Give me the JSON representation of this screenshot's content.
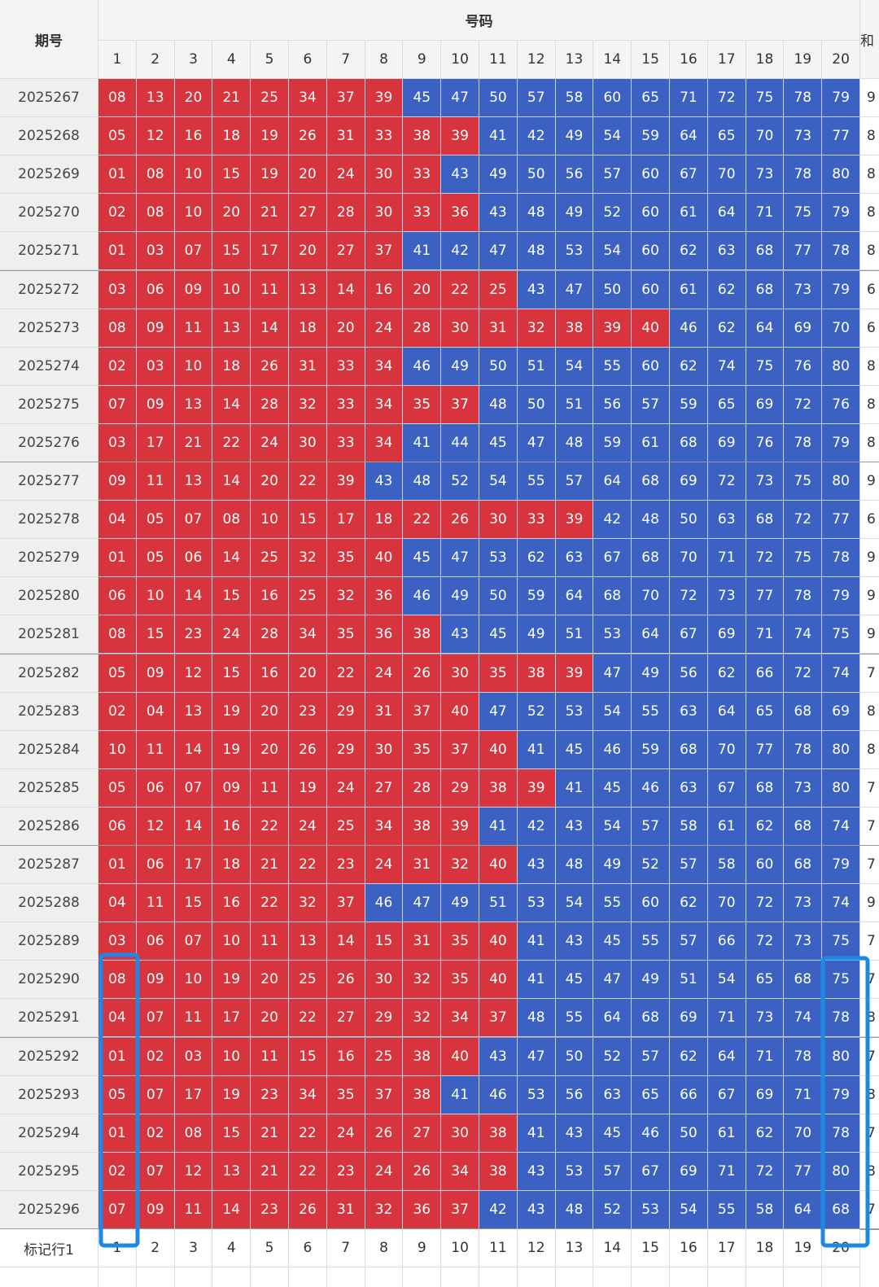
{
  "header": {
    "period": "期号",
    "numbers": "号码",
    "sum": "和"
  },
  "column_numbers": [
    1,
    2,
    3,
    4,
    5,
    6,
    7,
    8,
    9,
    10,
    11,
    12,
    13,
    14,
    15,
    16,
    17,
    18,
    19,
    20
  ],
  "rows": [
    {
      "period": "2025267",
      "numbers": [
        "08",
        "13",
        "20",
        "21",
        "25",
        "34",
        "37",
        "39",
        "45",
        "47",
        "50",
        "57",
        "58",
        "60",
        "65",
        "71",
        "72",
        "75",
        "78",
        "79"
      ],
      "sum": "9"
    },
    {
      "period": "2025268",
      "numbers": [
        "05",
        "12",
        "16",
        "18",
        "19",
        "26",
        "31",
        "33",
        "38",
        "39",
        "41",
        "42",
        "49",
        "54",
        "59",
        "64",
        "65",
        "70",
        "73",
        "77"
      ],
      "sum": "8"
    },
    {
      "period": "2025269",
      "numbers": [
        "01",
        "08",
        "10",
        "15",
        "19",
        "20",
        "24",
        "30",
        "33",
        "43",
        "49",
        "50",
        "56",
        "57",
        "60",
        "67",
        "70",
        "73",
        "78",
        "80"
      ],
      "sum": "8"
    },
    {
      "period": "2025270",
      "numbers": [
        "02",
        "08",
        "10",
        "20",
        "21",
        "27",
        "28",
        "30",
        "33",
        "36",
        "43",
        "48",
        "49",
        "52",
        "60",
        "61",
        "64",
        "71",
        "75",
        "79"
      ],
      "sum": "8"
    },
    {
      "period": "2025271",
      "numbers": [
        "01",
        "03",
        "07",
        "15",
        "17",
        "20",
        "27",
        "37",
        "41",
        "42",
        "47",
        "48",
        "53",
        "54",
        "60",
        "62",
        "63",
        "68",
        "77",
        "78"
      ],
      "sum": "8"
    },
    {
      "period": "2025272",
      "numbers": [
        "03",
        "06",
        "09",
        "10",
        "11",
        "13",
        "14",
        "16",
        "20",
        "22",
        "25",
        "43",
        "47",
        "50",
        "60",
        "61",
        "62",
        "68",
        "73",
        "79"
      ],
      "sum": "6"
    },
    {
      "period": "2025273",
      "numbers": [
        "08",
        "09",
        "11",
        "13",
        "14",
        "18",
        "20",
        "24",
        "28",
        "30",
        "31",
        "32",
        "38",
        "39",
        "40",
        "46",
        "62",
        "64",
        "69",
        "70"
      ],
      "sum": "6"
    },
    {
      "period": "2025274",
      "numbers": [
        "02",
        "03",
        "10",
        "18",
        "26",
        "31",
        "33",
        "34",
        "46",
        "49",
        "50",
        "51",
        "54",
        "55",
        "60",
        "62",
        "74",
        "75",
        "76",
        "80"
      ],
      "sum": "8"
    },
    {
      "period": "2025275",
      "numbers": [
        "07",
        "09",
        "13",
        "14",
        "28",
        "32",
        "33",
        "34",
        "35",
        "37",
        "48",
        "50",
        "51",
        "56",
        "57",
        "59",
        "65",
        "69",
        "72",
        "76"
      ],
      "sum": "8"
    },
    {
      "period": "2025276",
      "numbers": [
        "03",
        "17",
        "21",
        "22",
        "24",
        "30",
        "33",
        "34",
        "41",
        "44",
        "45",
        "47",
        "48",
        "59",
        "61",
        "68",
        "69",
        "76",
        "78",
        "79"
      ],
      "sum": "8"
    },
    {
      "period": "2025277",
      "numbers": [
        "09",
        "11",
        "13",
        "14",
        "20",
        "22",
        "39",
        "43",
        "48",
        "52",
        "54",
        "55",
        "57",
        "64",
        "68",
        "69",
        "72",
        "73",
        "75",
        "80"
      ],
      "sum": "9"
    },
    {
      "period": "2025278",
      "numbers": [
        "04",
        "05",
        "07",
        "08",
        "10",
        "15",
        "17",
        "18",
        "22",
        "26",
        "30",
        "33",
        "39",
        "42",
        "48",
        "50",
        "63",
        "68",
        "72",
        "77"
      ],
      "sum": "6"
    },
    {
      "period": "2025279",
      "numbers": [
        "01",
        "05",
        "06",
        "14",
        "25",
        "32",
        "35",
        "40",
        "45",
        "47",
        "53",
        "62",
        "63",
        "67",
        "68",
        "70",
        "71",
        "72",
        "75",
        "78"
      ],
      "sum": "9"
    },
    {
      "period": "2025280",
      "numbers": [
        "06",
        "10",
        "14",
        "15",
        "16",
        "25",
        "32",
        "36",
        "46",
        "49",
        "50",
        "59",
        "64",
        "68",
        "70",
        "72",
        "73",
        "77",
        "78",
        "79"
      ],
      "sum": "9"
    },
    {
      "period": "2025281",
      "numbers": [
        "08",
        "15",
        "23",
        "24",
        "28",
        "34",
        "35",
        "36",
        "38",
        "43",
        "45",
        "49",
        "51",
        "53",
        "64",
        "67",
        "69",
        "71",
        "74",
        "75"
      ],
      "sum": "9"
    },
    {
      "period": "2025282",
      "numbers": [
        "05",
        "09",
        "12",
        "15",
        "16",
        "20",
        "22",
        "24",
        "26",
        "30",
        "35",
        "38",
        "39",
        "47",
        "49",
        "56",
        "62",
        "66",
        "72",
        "74"
      ],
      "sum": "7"
    },
    {
      "period": "2025283",
      "numbers": [
        "02",
        "04",
        "13",
        "19",
        "20",
        "23",
        "29",
        "31",
        "37",
        "40",
        "47",
        "52",
        "53",
        "54",
        "55",
        "63",
        "64",
        "65",
        "68",
        "69"
      ],
      "sum": "8"
    },
    {
      "period": "2025284",
      "numbers": [
        "10",
        "11",
        "14",
        "19",
        "20",
        "26",
        "29",
        "30",
        "35",
        "37",
        "40",
        "41",
        "45",
        "46",
        "59",
        "68",
        "70",
        "77",
        "78",
        "80"
      ],
      "sum": "8"
    },
    {
      "period": "2025285",
      "numbers": [
        "05",
        "06",
        "07",
        "09",
        "11",
        "19",
        "24",
        "27",
        "28",
        "29",
        "38",
        "39",
        "41",
        "45",
        "46",
        "63",
        "67",
        "68",
        "73",
        "80"
      ],
      "sum": "7"
    },
    {
      "period": "2025286",
      "numbers": [
        "06",
        "12",
        "14",
        "16",
        "22",
        "24",
        "25",
        "34",
        "38",
        "39",
        "41",
        "42",
        "43",
        "54",
        "57",
        "58",
        "61",
        "62",
        "68",
        "74"
      ],
      "sum": "7"
    },
    {
      "period": "2025287",
      "numbers": [
        "01",
        "06",
        "17",
        "18",
        "21",
        "22",
        "23",
        "24",
        "31",
        "32",
        "40",
        "43",
        "48",
        "49",
        "52",
        "57",
        "58",
        "60",
        "68",
        "79"
      ],
      "sum": "7"
    },
    {
      "period": "2025288",
      "numbers": [
        "04",
        "11",
        "15",
        "16",
        "22",
        "32",
        "37",
        "46",
        "47",
        "49",
        "51",
        "53",
        "54",
        "55",
        "60",
        "62",
        "70",
        "72",
        "73",
        "74"
      ],
      "sum": "9"
    },
    {
      "period": "2025289",
      "numbers": [
        "03",
        "06",
        "07",
        "10",
        "11",
        "13",
        "14",
        "15",
        "31",
        "35",
        "40",
        "41",
        "43",
        "45",
        "55",
        "57",
        "66",
        "72",
        "73",
        "75"
      ],
      "sum": "7"
    },
    {
      "period": "2025290",
      "numbers": [
        "08",
        "09",
        "10",
        "19",
        "20",
        "25",
        "26",
        "30",
        "32",
        "35",
        "40",
        "41",
        "45",
        "47",
        "49",
        "51",
        "54",
        "65",
        "68",
        "75"
      ],
      "sum": "7"
    },
    {
      "period": "2025291",
      "numbers": [
        "04",
        "07",
        "11",
        "17",
        "20",
        "22",
        "27",
        "29",
        "32",
        "34",
        "37",
        "48",
        "55",
        "64",
        "68",
        "69",
        "71",
        "73",
        "74",
        "78"
      ],
      "sum": "8"
    },
    {
      "period": "2025292",
      "numbers": [
        "01",
        "02",
        "03",
        "10",
        "11",
        "15",
        "16",
        "25",
        "38",
        "40",
        "43",
        "47",
        "50",
        "52",
        "57",
        "62",
        "64",
        "71",
        "78",
        "80"
      ],
      "sum": "7"
    },
    {
      "period": "2025293",
      "numbers": [
        "05",
        "07",
        "17",
        "19",
        "23",
        "34",
        "35",
        "37",
        "38",
        "41",
        "46",
        "53",
        "56",
        "63",
        "65",
        "66",
        "67",
        "69",
        "71",
        "79"
      ],
      "sum": "8"
    },
    {
      "period": "2025294",
      "numbers": [
        "01",
        "02",
        "08",
        "15",
        "21",
        "22",
        "24",
        "26",
        "27",
        "30",
        "38",
        "41",
        "43",
        "45",
        "46",
        "50",
        "61",
        "62",
        "70",
        "78"
      ],
      "sum": "7"
    },
    {
      "period": "2025295",
      "numbers": [
        "02",
        "07",
        "12",
        "13",
        "21",
        "22",
        "23",
        "24",
        "26",
        "34",
        "38",
        "43",
        "53",
        "57",
        "67",
        "69",
        "71",
        "72",
        "77",
        "80"
      ],
      "sum": "8"
    },
    {
      "period": "2025296",
      "numbers": [
        "07",
        "09",
        "11",
        "14",
        "23",
        "26",
        "31",
        "32",
        "36",
        "37",
        "42",
        "43",
        "48",
        "52",
        "53",
        "54",
        "55",
        "58",
        "64",
        "68"
      ],
      "sum": "7"
    }
  ],
  "footer": {
    "label": "标记行1",
    "numbers": [
      1,
      2,
      3,
      4,
      5,
      6,
      7,
      8,
      9,
      10,
      11,
      12,
      13,
      14,
      15,
      16,
      17,
      18,
      19,
      20
    ]
  },
  "colors": {
    "low": "#d8343d",
    "high": "#3b62c3",
    "low_max": 40
  }
}
